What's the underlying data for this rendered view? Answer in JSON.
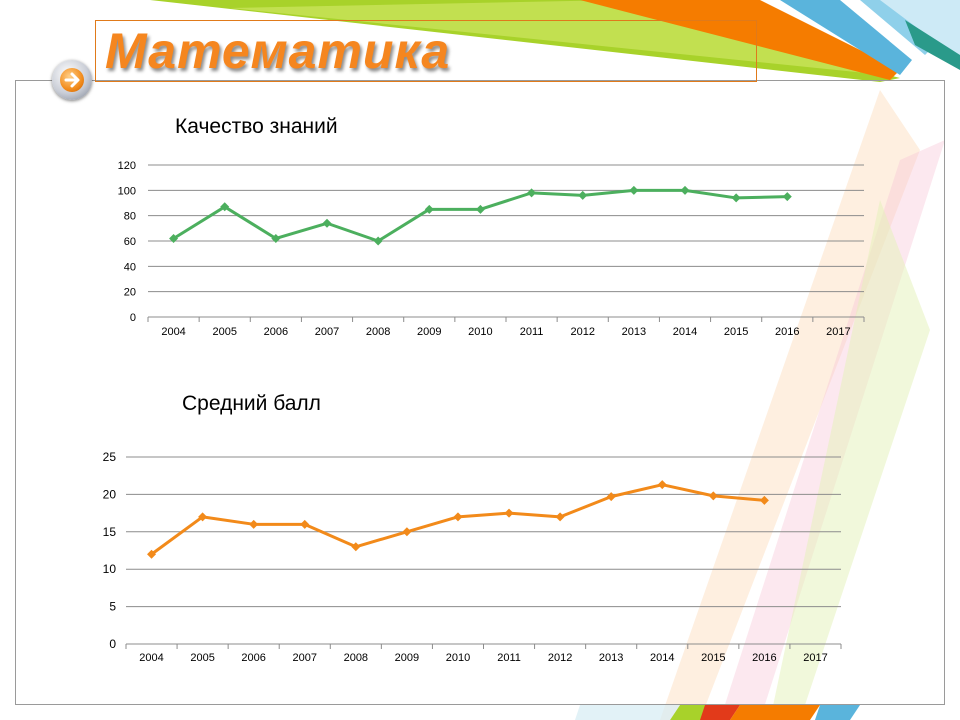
{
  "slide": {
    "title": "Математика",
    "colors": {
      "title": "#f5861f",
      "accent_green": "#9acd1f",
      "accent_orange": "#f57c00",
      "accent_blue": "#5ab4dc"
    }
  },
  "nav_button": {
    "icon": "arrow-right-icon"
  },
  "chart_data": [
    {
      "type": "line",
      "title": "Качество знаний",
      "xlabel": "",
      "ylabel": "",
      "categories": [
        "2004",
        "2005",
        "2006",
        "2007",
        "2008",
        "2009",
        "2010",
        "2011",
        "2012",
        "2013",
        "2014",
        "2015",
        "2016",
        "2017"
      ],
      "series": [
        {
          "color": "#4caf5e",
          "values": [
            62,
            87,
            62,
            74,
            60,
            85,
            85,
            98,
            96,
            100,
            100,
            94,
            95,
            null
          ]
        }
      ],
      "ylim": [
        0,
        120
      ],
      "yticks": [
        0,
        20,
        40,
        60,
        80,
        100,
        120
      ],
      "grid": true,
      "legend": "none"
    },
    {
      "type": "line",
      "title": "Средний балл",
      "xlabel": "",
      "ylabel": "",
      "categories": [
        "2004",
        "2005",
        "2006",
        "2007",
        "2008",
        "2009",
        "2010",
        "2011",
        "2012",
        "2013",
        "2014",
        "2015",
        "2016",
        "2017"
      ],
      "series": [
        {
          "color": "#f28a1a",
          "values": [
            12,
            17,
            16,
            16,
            13,
            15,
            17,
            17.5,
            17,
            19.7,
            21.3,
            19.8,
            19.2,
            null
          ]
        }
      ],
      "ylim": [
        0,
        25
      ],
      "yticks": [
        0,
        5,
        10,
        15,
        20,
        25
      ],
      "grid": true,
      "legend": "none"
    }
  ]
}
